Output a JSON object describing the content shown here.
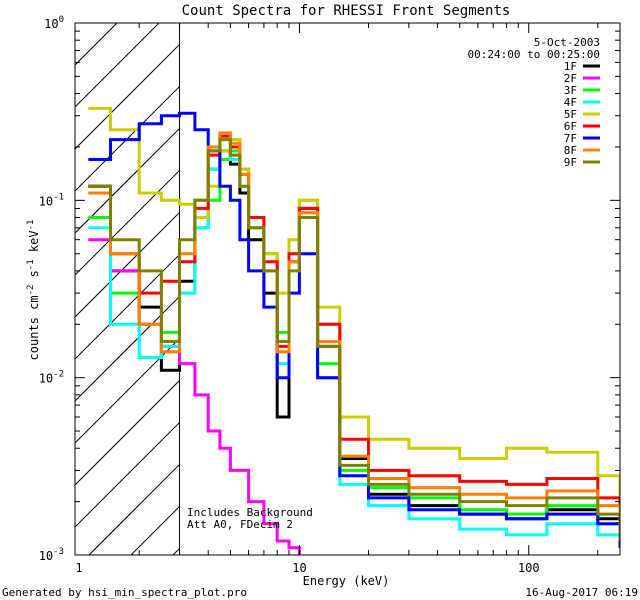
{
  "chart_data": {
    "type": "line",
    "title": "Count Spectra for RHESSI Front Segments",
    "xlabel": "Energy (keV)",
    "ylabel": "counts cm-2 s-1 keV-1",
    "ylabel_parts": {
      "base": "counts cm",
      "e1": "-2",
      "mid1": " s",
      "e2": "-1",
      "mid2": " keV",
      "e3": "-1"
    },
    "xscale": "log",
    "yscale": "log",
    "xlim": [
      1.05,
      250
    ],
    "ylim": [
      0.001,
      1
    ],
    "x_ticks": [
      {
        "value": 1,
        "label": "1"
      },
      {
        "value": 10,
        "label": "10"
      },
      {
        "value": 100,
        "label": "100"
      }
    ],
    "y_ticks": [
      {
        "value": 1,
        "label": "10",
        "exp": "0"
      },
      {
        "value": 0.1,
        "label": "10",
        "exp": "-1"
      },
      {
        "value": 0.01,
        "label": "10",
        "exp": "-2"
      },
      {
        "value": 0.001,
        "label": "10",
        "exp": "-3"
      }
    ],
    "hatched_region": {
      "x_from": 1.05,
      "x_to": 3
    },
    "date": "5-Oct-2003",
    "time_range": "00:24:00 to 00:25:00",
    "annotation_lines": [
      "Includes Background",
      "Att A0, FDecim 2"
    ],
    "footer_left": "Generated by hsi_min_spectra_plot.pro",
    "footer_right": "16-Aug-2017 06:19",
    "legend_position": "top-right",
    "series": [
      {
        "name": "1F",
        "color": "#000000",
        "x": [
          1.2,
          1.5,
          2,
          2.5,
          3,
          3.5,
          4,
          4.5,
          5,
          5.5,
          6,
          7,
          8,
          9,
          10,
          12,
          15,
          20,
          30,
          50,
          80,
          120,
          200,
          250
        ],
        "y": [
          0.12,
          0.04,
          0.025,
          0.011,
          0.035,
          0.08,
          0.15,
          0.19,
          0.16,
          0.11,
          0.06,
          0.03,
          0.006,
          0.045,
          0.09,
          0.015,
          0.0035,
          0.0022,
          0.0019,
          0.0017,
          0.0016,
          0.0018,
          0.0016,
          0.0011
        ]
      },
      {
        "name": "2F",
        "color": "#ff00ff",
        "x": [
          1.2,
          1.5,
          2,
          2.5,
          3,
          3.5,
          4,
          4.5,
          5,
          6,
          7,
          8,
          9,
          10
        ],
        "y": [
          0.06,
          0.04,
          0.02,
          0.015,
          0.012,
          0.008,
          0.005,
          0.004,
          0.003,
          0.002,
          0.0015,
          0.0012,
          0.0011,
          0.001
        ]
      },
      {
        "name": "3F",
        "color": "#00ff00",
        "x": [
          1.2,
          1.5,
          2,
          2.5,
          3,
          3.5,
          4,
          4.5,
          5,
          5.5,
          6,
          7,
          8,
          9,
          10,
          12,
          15,
          20,
          30,
          50,
          80,
          120,
          200,
          250
        ],
        "y": [
          0.08,
          0.03,
          0.02,
          0.018,
          0.03,
          0.07,
          0.1,
          0.17,
          0.19,
          0.15,
          0.08,
          0.05,
          0.018,
          0.05,
          0.1,
          0.012,
          0.003,
          0.0024,
          0.0021,
          0.0018,
          0.0017,
          0.0019,
          0.0015,
          0.0012
        ]
      },
      {
        "name": "4F",
        "color": "#00ffff",
        "x": [
          1.2,
          1.5,
          2,
          2.5,
          3,
          3.5,
          4,
          4.5,
          5,
          5.5,
          6,
          7,
          8,
          9,
          10,
          12,
          15,
          20,
          30,
          50,
          80,
          120,
          200,
          250
        ],
        "y": [
          0.07,
          0.02,
          0.013,
          0.015,
          0.03,
          0.07,
          0.15,
          0.19,
          0.17,
          0.12,
          0.07,
          0.04,
          0.012,
          0.05,
          0.08,
          0.01,
          0.0025,
          0.0019,
          0.0016,
          0.0014,
          0.0013,
          0.0015,
          0.0013,
          0.0011
        ]
      },
      {
        "name": "5F",
        "color": "#cccc00",
        "x": [
          1.2,
          1.5,
          2,
          2.5,
          3,
          3.5,
          4,
          4.5,
          5,
          5.5,
          6,
          7,
          8,
          9,
          10,
          12,
          15,
          20,
          30,
          50,
          80,
          120,
          200,
          250
        ],
        "y": [
          0.33,
          0.25,
          0.11,
          0.1,
          0.095,
          0.08,
          0.12,
          0.19,
          0.22,
          0.15,
          0.08,
          0.05,
          0.03,
          0.06,
          0.1,
          0.025,
          0.006,
          0.0045,
          0.004,
          0.0035,
          0.004,
          0.0038,
          0.0028,
          0.0016
        ]
      },
      {
        "name": "6F",
        "color": "#ff0000",
        "x": [
          1.2,
          1.5,
          2,
          2.5,
          3,
          3.5,
          4,
          4.5,
          5,
          5.5,
          6,
          7,
          8,
          9,
          10,
          12,
          15,
          20,
          30,
          50,
          80,
          120,
          200,
          250
        ],
        "y": [
          0.12,
          0.05,
          0.03,
          0.035,
          0.045,
          0.09,
          0.18,
          0.23,
          0.2,
          0.14,
          0.08,
          0.045,
          0.015,
          0.05,
          0.09,
          0.02,
          0.0045,
          0.003,
          0.0028,
          0.0026,
          0.0025,
          0.0027,
          0.0021,
          0.0013
        ]
      },
      {
        "name": "7F",
        "color": "#0000ff",
        "x": [
          1.2,
          1.5,
          2,
          2.5,
          3,
          3.5,
          4,
          4.5,
          5,
          5.5,
          6,
          7,
          8,
          9,
          10,
          12,
          15,
          20,
          30,
          50,
          80,
          120,
          200,
          250
        ],
        "y": [
          0.17,
          0.22,
          0.27,
          0.3,
          0.31,
          0.25,
          0.19,
          0.12,
          0.1,
          0.06,
          0.04,
          0.025,
          0.01,
          0.03,
          0.05,
          0.01,
          0.0028,
          0.0021,
          0.0018,
          0.0017,
          0.0016,
          0.0017,
          0.0015,
          0.0011
        ]
      },
      {
        "name": "8F",
        "color": "#ff8000",
        "x": [
          1.2,
          1.5,
          2,
          2.5,
          3,
          3.5,
          4,
          4.5,
          5,
          5.5,
          6,
          7,
          8,
          9,
          10,
          12,
          15,
          20,
          30,
          50,
          80,
          120,
          200,
          250
        ],
        "y": [
          0.11,
          0.05,
          0.02,
          0.014,
          0.05,
          0.1,
          0.2,
          0.24,
          0.21,
          0.14,
          0.07,
          0.04,
          0.014,
          0.045,
          0.085,
          0.016,
          0.0036,
          0.0027,
          0.0024,
          0.0022,
          0.0021,
          0.0023,
          0.0019,
          0.0012
        ]
      },
      {
        "name": "9F",
        "color": "#808000",
        "x": [
          1.2,
          1.5,
          2,
          2.5,
          3,
          3.5,
          4,
          4.5,
          5,
          5.5,
          6,
          7,
          8,
          9,
          10,
          12,
          15,
          20,
          30,
          50,
          80,
          120,
          200,
          250
        ],
        "y": [
          0.12,
          0.06,
          0.04,
          0.016,
          0.06,
          0.1,
          0.19,
          0.22,
          0.18,
          0.12,
          0.07,
          0.04,
          0.016,
          0.04,
          0.08,
          0.015,
          0.0032,
          0.0025,
          0.0022,
          0.002,
          0.0019,
          0.0021,
          0.0017,
          0.0012
        ]
      }
    ]
  }
}
